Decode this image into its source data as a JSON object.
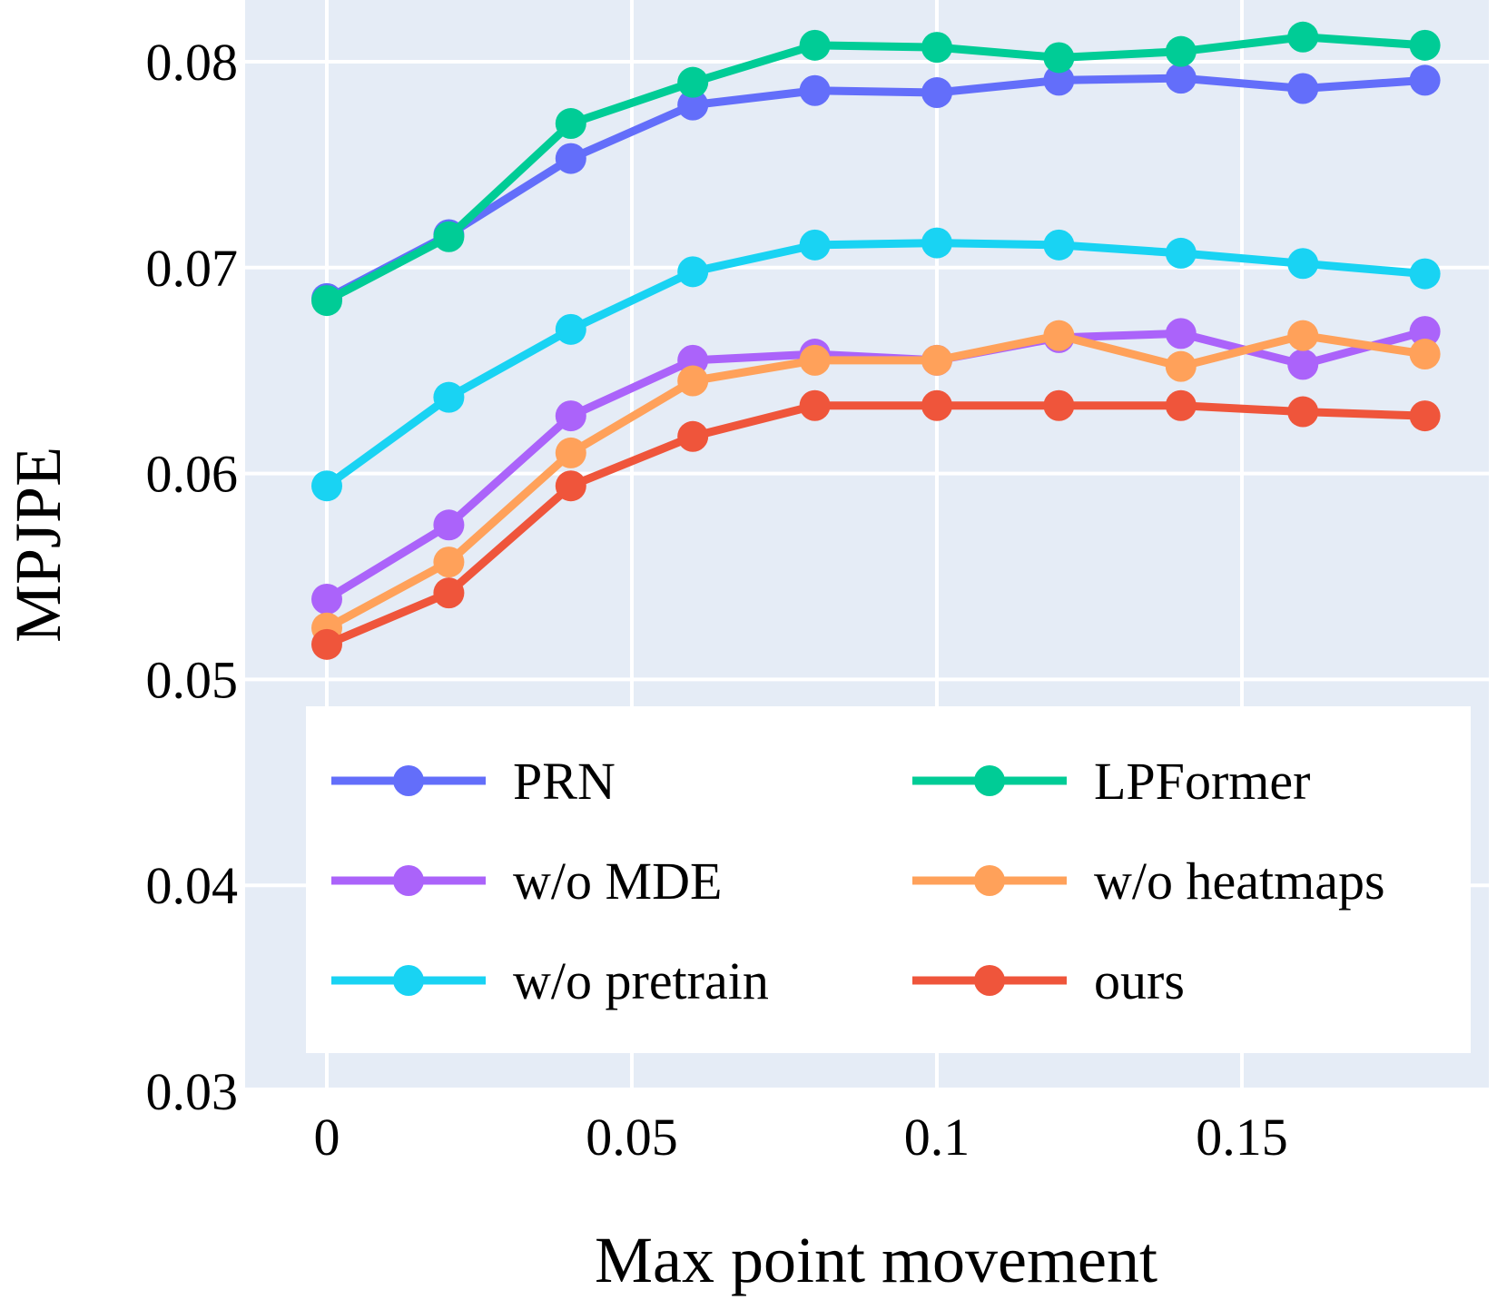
{
  "chart_data": {
    "type": "line",
    "title": "",
    "xlabel": "Max point movement",
    "ylabel": "MPJPE",
    "xlim": [
      -0.013,
      0.1875
    ],
    "ylim": [
      0.03,
      0.083
    ],
    "xticks": [
      0,
      0.05,
      0.1,
      0.15
    ],
    "xtick_labels": [
      "0",
      "0.05",
      "0.1",
      "0.15"
    ],
    "yticks": [
      0.03,
      0.04,
      0.05,
      0.06,
      0.07,
      0.08
    ],
    "ytick_labels": [
      "0.03",
      "0.04",
      "0.05",
      "0.06",
      "0.07",
      "0.08"
    ],
    "grid": true,
    "background": "#E5ECF6",
    "legend_position": "bottom-inside",
    "x": [
      0,
      0.02,
      0.04,
      0.06,
      0.08,
      0.1,
      0.12,
      0.14,
      0.16,
      0.18
    ],
    "series": [
      {
        "name": "PRN",
        "color": "#636EFA",
        "values": [
          0.0685,
          0.0716,
          0.0753,
          0.0779,
          0.0786,
          0.0785,
          0.0791,
          0.0792,
          0.0787,
          0.0791
        ]
      },
      {
        "name": "LPFormer",
        "color": "#00CC96",
        "values": [
          0.0684,
          0.0715,
          0.077,
          0.079,
          0.0808,
          0.0807,
          0.0802,
          0.0805,
          0.0812,
          0.0808
        ]
      },
      {
        "name": "w/o MDE",
        "color": "#AB63FA",
        "values": [
          0.0539,
          0.0575,
          0.0628,
          0.0655,
          0.0658,
          0.0655,
          0.0666,
          0.0668,
          0.0653,
          0.0669
        ]
      },
      {
        "name": "w/o heatmaps",
        "color": "#FFA15A",
        "values": [
          0.0525,
          0.0557,
          0.061,
          0.0645,
          0.0655,
          0.0655,
          0.0667,
          0.0652,
          0.0667,
          0.0658
        ]
      },
      {
        "name": "w/o pretrain",
        "color": "#19D3F3",
        "values": [
          0.0594,
          0.0637,
          0.067,
          0.0698,
          0.0711,
          0.0712,
          0.0711,
          0.0707,
          0.0702,
          0.0697
        ]
      },
      {
        "name": "ours",
        "color": "#EF553B",
        "values": [
          0.0517,
          0.0542,
          0.0594,
          0.0618,
          0.0633,
          0.0633,
          0.0633,
          0.0633,
          0.063,
          0.0628
        ]
      }
    ],
    "legend_order": [
      "PRN",
      "LPFormer",
      "w/o MDE",
      "w/o heatmaps",
      "w/o pretrain",
      "ours"
    ]
  }
}
